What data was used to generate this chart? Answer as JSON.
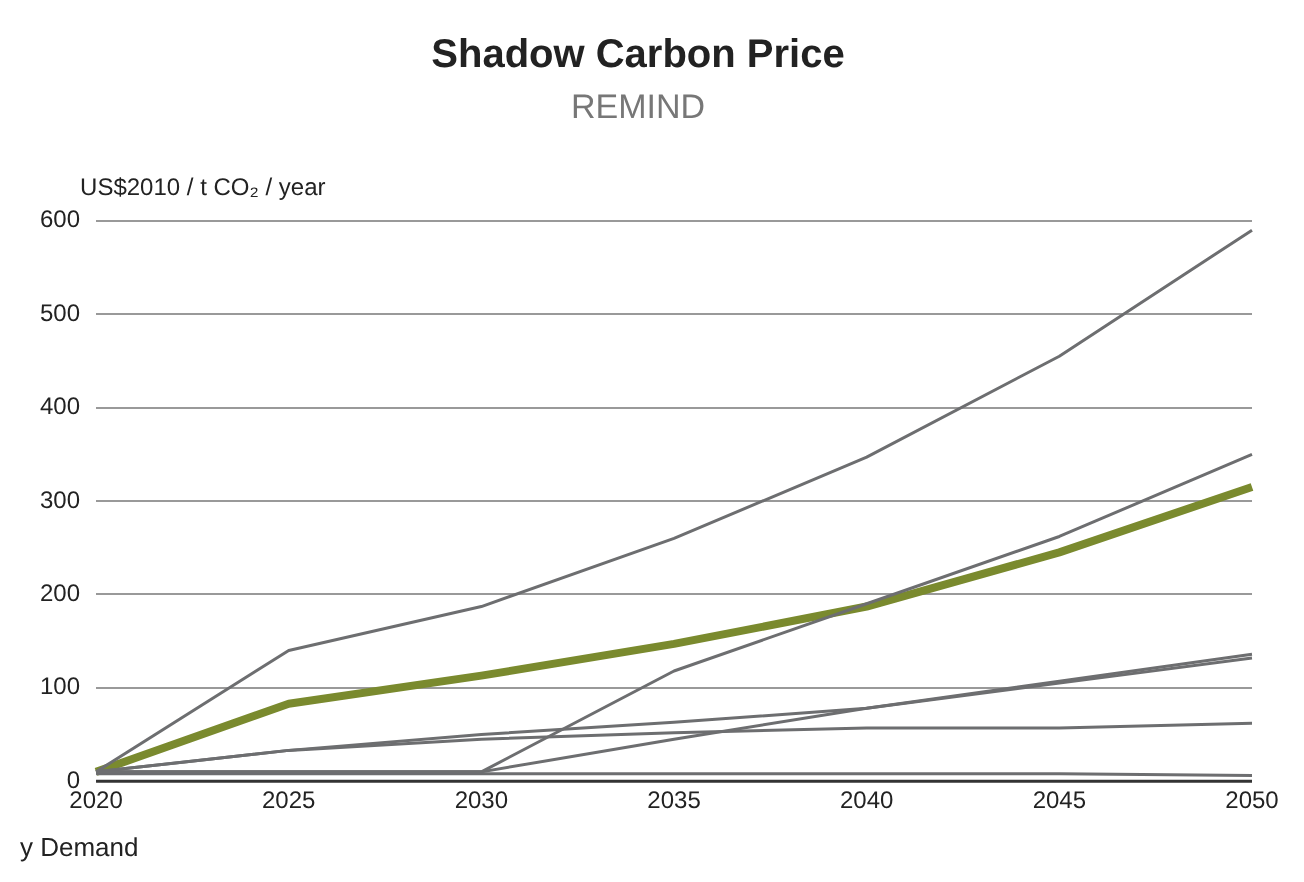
{
  "chart_data": {
    "type": "line",
    "title": "Shadow Carbon Price",
    "subtitle": "REMIND",
    "ylabel": "US$2010 / t CO₂ / year",
    "annotations": [
      "y Demand"
    ],
    "categories": [
      "2020",
      "2025",
      "2030",
      "2035",
      "2040",
      "2045",
      "2050"
    ],
    "ylim": [
      0,
      600
    ],
    "yticks": [
      0,
      100,
      200,
      300,
      400,
      500,
      600
    ],
    "grid": "y",
    "legend": false,
    "marker": "none",
    "line_style": "solid",
    "series": [
      {
        "color": "#6d6e70",
        "values": [
          10,
          140,
          187,
          260,
          347,
          455,
          590
        ]
      },
      {
        "color": "#6d6e70",
        "values": [
          10,
          10,
          10,
          118,
          190,
          262,
          350
        ]
      },
      {
        "color": "#6d6e70",
        "values": [
          10,
          33,
          50,
          63,
          78,
          107,
          136
        ]
      },
      {
        "color": "#6d6e70",
        "values": [
          10,
          10,
          10,
          45,
          78,
          105,
          132
        ]
      },
      {
        "color": "#6d6e70",
        "values": [
          10,
          33,
          45,
          52,
          57,
          57,
          62
        ]
      },
      {
        "color": "#6d6e70",
        "values": [
          8,
          8,
          8,
          8,
          8,
          8,
          6
        ]
      },
      {
        "color": "#7a8a2e",
        "values": [
          10,
          83,
          113,
          147,
          187,
          245,
          315
        ]
      }
    ]
  }
}
